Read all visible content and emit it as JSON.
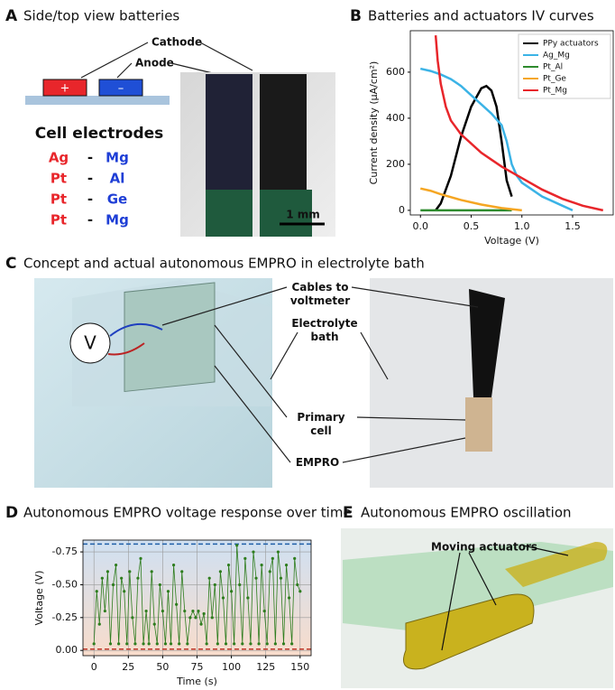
{
  "panels": {
    "a": {
      "letter": "A",
      "title": "Side/top view batteries",
      "cathode": "Cathode",
      "anode": "Anode",
      "plus": "+",
      "minus": "–",
      "electrodes_title": "Cell electrodes",
      "pairs": [
        [
          "Ag",
          "-",
          "Mg"
        ],
        [
          "Pt",
          "-",
          "Al"
        ],
        [
          "Pt",
          "-",
          "Ge"
        ],
        [
          "Pt",
          "-",
          "Mg"
        ]
      ],
      "scale": "1 mm"
    },
    "b": {
      "letter": "B"
    },
    "c": {
      "letter": "C",
      "title": "Concept and actual autonomous EMPRO in electrolyte bath",
      "voltmeter": "V",
      "cables": "Cables to\nvoltmeter",
      "bath": "Electrolyte\nbath",
      "cell": "Primary\ncell",
      "empro": "EMPRO"
    },
    "d": {
      "letter": "D"
    },
    "e": {
      "letter": "E",
      "title": "Autonomous EMPRO oscillation",
      "actuators": "Moving actuators"
    }
  },
  "chart_data": [
    {
      "type": "line",
      "title": "Batteries and actuators IV curves",
      "x_label": "Voltage (V)",
      "y_label": "Current density (μA/cm²)",
      "xlim": [
        -0.1,
        1.9
      ],
      "ylim": [
        -20,
        780
      ],
      "xticks": [
        {
          "value": 0,
          "label": "0.0"
        },
        {
          "value": 0.5,
          "label": "0.5"
        },
        {
          "value": 1,
          "label": "1.0"
        },
        {
          "value": 1.5,
          "label": "1.5"
        }
      ],
      "yticks": [
        0,
        200,
        400,
        600
      ],
      "grid": false,
      "legend": "upper right",
      "markers": false,
      "series": [
        {
          "name": "PPy actuators",
          "color": "#000000",
          "x": [
            0.15,
            0.2,
            0.3,
            0.4,
            0.5,
            0.6,
            0.65,
            0.7,
            0.75,
            0.8,
            0.85,
            0.9
          ],
          "values": [
            0,
            30,
            150,
            320,
            450,
            530,
            540,
            520,
            450,
            300,
            130,
            60
          ]
        },
        {
          "name": "Ag_Mg",
          "color": "#3bb3e6",
          "x": [
            0,
            0.1,
            0.2,
            0.3,
            0.4,
            0.5,
            0.6,
            0.7,
            0.8,
            0.85,
            0.9,
            0.95,
            1.0,
            1.1,
            1.2,
            1.3,
            1.4,
            1.5
          ],
          "values": [
            615,
            605,
            590,
            570,
            540,
            500,
            460,
            420,
            370,
            300,
            200,
            150,
            120,
            90,
            60,
            40,
            20,
            0
          ]
        },
        {
          "name": "Pt_Al",
          "color": "#2e8b2e",
          "x": [
            0,
            0.3,
            0.6,
            0.9
          ],
          "values": [
            0,
            0,
            0,
            0
          ]
        },
        {
          "name": "Pt_Ge",
          "color": "#f5a623",
          "x": [
            0,
            0.1,
            0.2,
            0.4,
            0.6,
            0.8,
            0.9,
            1.0
          ],
          "values": [
            95,
            85,
            70,
            45,
            25,
            10,
            5,
            0
          ]
        },
        {
          "name": "Pt_Mg",
          "color": "#e8262b",
          "x": [
            0.15,
            0.17,
            0.2,
            0.25,
            0.3,
            0.4,
            0.5,
            0.6,
            0.7,
            0.8,
            1.0,
            1.2,
            1.4,
            1.6,
            1.8
          ],
          "values": [
            760,
            650,
            550,
            450,
            390,
            330,
            290,
            250,
            220,
            190,
            140,
            90,
            50,
            20,
            0
          ]
        }
      ]
    },
    {
      "type": "line",
      "title": "Autonomous EMPRO voltage response over time",
      "x_label": "Time (s)",
      "y_label": "Voltage (V)",
      "xlim": [
        -8,
        158
      ],
      "ylim": [
        0.04,
        -0.84
      ],
      "xticks": [
        0,
        25,
        50,
        75,
        100,
        125,
        150
      ],
      "yticks": [
        {
          "value": -0.75,
          "label": "-0.75"
        },
        {
          "value": -0.5,
          "label": "-0.50"
        },
        {
          "value": -0.25,
          "label": "-0.25"
        },
        {
          "value": 0,
          "label": "0.00"
        }
      ],
      "grid": true,
      "markers": true,
      "reference_lines": [
        {
          "value": -0.81,
          "color": "#1f5fa8"
        },
        {
          "value": -0.01,
          "color": "#c0392b"
        }
      ],
      "series": [
        {
          "color": "#2e7d1e",
          "x": [
            0,
            2,
            4,
            6,
            8,
            10,
            12,
            14,
            16,
            18,
            20,
            22,
            24,
            26,
            28,
            30,
            32,
            34,
            36,
            38,
            40,
            42,
            44,
            46,
            48,
            50,
            52,
            54,
            56,
            58,
            60,
            62,
            64,
            66,
            68,
            70,
            72,
            74,
            76,
            78,
            80,
            82,
            84,
            86,
            88,
            90,
            92,
            94,
            96,
            98,
            100,
            102,
            104,
            106,
            108,
            110,
            112,
            114,
            116,
            118,
            120,
            122,
            124,
            126,
            128,
            130,
            132,
            134,
            136,
            138,
            140,
            142,
            144,
            146,
            148,
            150
          ],
          "values": [
            -0.05,
            -0.45,
            -0.2,
            -0.55,
            -0.3,
            -0.6,
            -0.05,
            -0.5,
            -0.65,
            -0.05,
            -0.55,
            -0.45,
            -0.05,
            -0.6,
            -0.25,
            -0.05,
            -0.55,
            -0.7,
            -0.05,
            -0.3,
            -0.05,
            -0.6,
            -0.2,
            -0.05,
            -0.5,
            -0.3,
            -0.05,
            -0.45,
            -0.05,
            -0.65,
            -0.35,
            -0.05,
            -0.6,
            -0.3,
            -0.05,
            -0.25,
            -0.3,
            -0.25,
            -0.3,
            -0.2,
            -0.28,
            -0.05,
            -0.55,
            -0.25,
            -0.5,
            -0.05,
            -0.6,
            -0.4,
            -0.05,
            -0.65,
            -0.45,
            -0.05,
            -0.8,
            -0.5,
            -0.05,
            -0.7,
            -0.4,
            -0.05,
            -0.75,
            -0.55,
            -0.05,
            -0.65,
            -0.3,
            -0.05,
            -0.6,
            -0.7,
            -0.05,
            -0.75,
            -0.55,
            -0.05,
            -0.65,
            -0.4,
            -0.05,
            -0.7,
            -0.5,
            -0.45
          ]
        }
      ]
    }
  ]
}
